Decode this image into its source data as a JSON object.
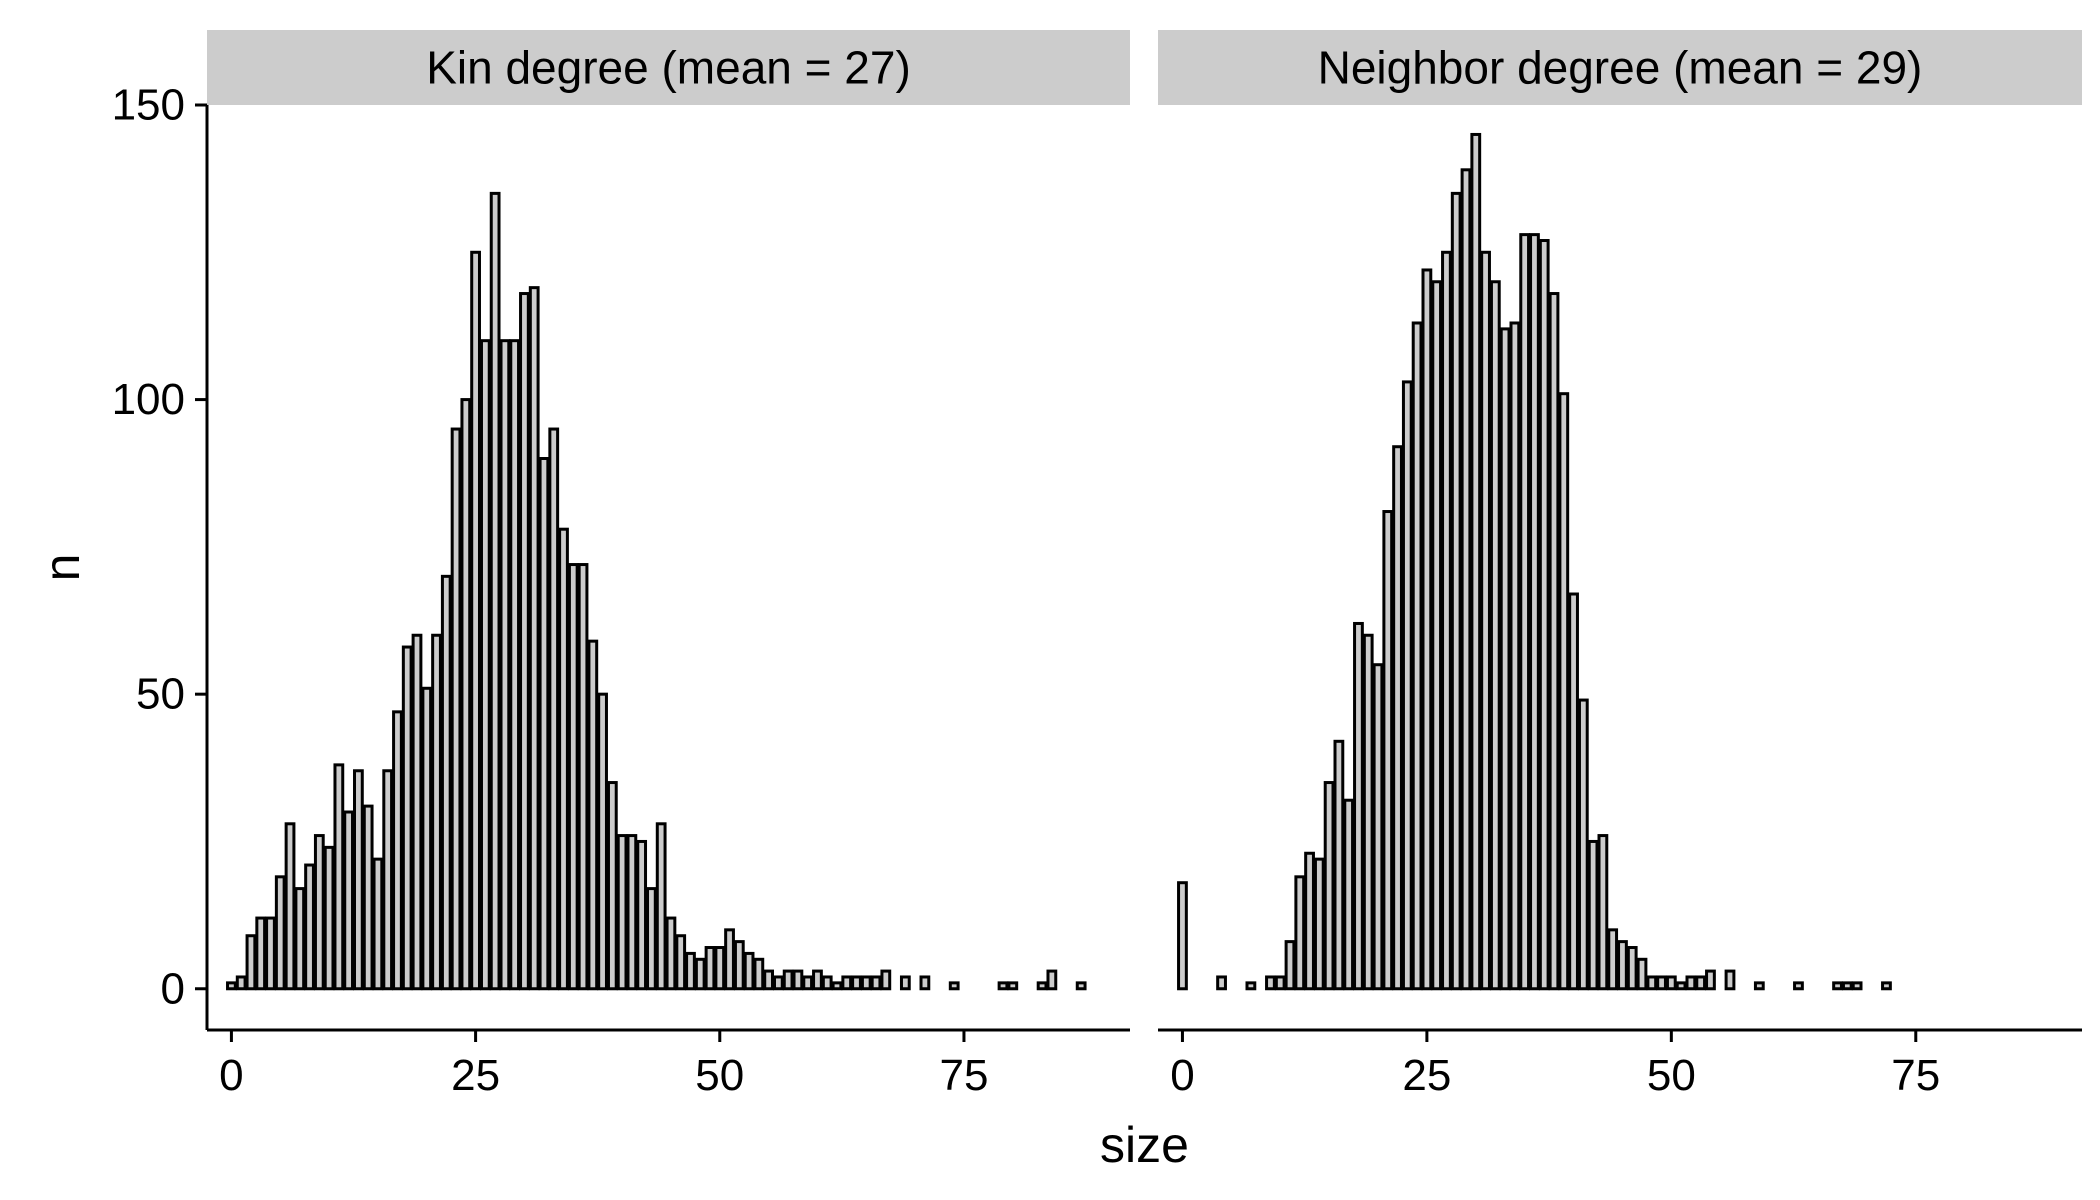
{
  "chart_data": {
    "type": "bar",
    "xlabel": "size",
    "ylabel": "n",
    "ylim": [
      -7,
      150
    ],
    "y_ticks": [
      0,
      50,
      100,
      150
    ],
    "x_ticks": [
      0,
      25,
      50,
      75
    ],
    "xlim": [
      -2.5,
      92
    ],
    "bin_width": 1,
    "grid": false,
    "bar_fill": "#cccccc",
    "bar_stroke": "#000000",
    "strip_fill": "#cccccc",
    "panels": [
      {
        "name": "Kin degree (mean = 27)",
        "x": [
          0,
          1,
          2,
          3,
          4,
          5,
          6,
          7,
          8,
          9,
          10,
          11,
          12,
          13,
          14,
          15,
          16,
          17,
          18,
          19,
          20,
          21,
          22,
          23,
          24,
          25,
          26,
          27,
          28,
          29,
          30,
          31,
          32,
          33,
          34,
          35,
          36,
          37,
          38,
          39,
          40,
          41,
          42,
          43,
          44,
          45,
          46,
          47,
          48,
          49,
          50,
          51,
          52,
          53,
          54,
          55,
          56,
          57,
          58,
          59,
          60,
          61,
          62,
          63,
          64,
          65,
          66,
          67,
          69,
          71,
          74,
          79,
          80,
          83,
          84,
          87
        ],
        "values": [
          1,
          2,
          9,
          12,
          12,
          19,
          28,
          17,
          21,
          26,
          24,
          38,
          30,
          37,
          31,
          22,
          37,
          47,
          58,
          60,
          51,
          60,
          70,
          95,
          100,
          125,
          110,
          135,
          110,
          110,
          118,
          119,
          90,
          95,
          78,
          72,
          72,
          59,
          50,
          35,
          26,
          26,
          25,
          17,
          28,
          12,
          9,
          6,
          5,
          7,
          7,
          10,
          8,
          6,
          5,
          3,
          2,
          3,
          3,
          2,
          3,
          2,
          1,
          2,
          2,
          2,
          2,
          3,
          2,
          2,
          1,
          1,
          1,
          1,
          3,
          1
        ]
      },
      {
        "name": "Neighbor degree (mean = 29)",
        "x": [
          0,
          4,
          7,
          9,
          10,
          11,
          12,
          13,
          14,
          15,
          16,
          17,
          18,
          19,
          20,
          21,
          22,
          23,
          24,
          25,
          26,
          27,
          28,
          29,
          30,
          31,
          32,
          33,
          34,
          35,
          36,
          37,
          38,
          39,
          40,
          41,
          42,
          43,
          44,
          45,
          46,
          47,
          48,
          49,
          50,
          51,
          52,
          53,
          54,
          56,
          59,
          63,
          67,
          68,
          69,
          72
        ],
        "values": [
          18,
          2,
          1,
          2,
          2,
          8,
          19,
          23,
          22,
          35,
          42,
          32,
          62,
          60,
          55,
          81,
          92,
          103,
          113,
          122,
          120,
          125,
          135,
          139,
          145,
          125,
          120,
          112,
          113,
          128,
          128,
          127,
          118,
          101,
          67,
          49,
          25,
          26,
          10,
          8,
          7,
          5,
          2,
          2,
          2,
          1,
          2,
          2,
          3,
          3,
          1,
          1,
          1,
          1,
          1,
          1
        ]
      }
    ]
  }
}
